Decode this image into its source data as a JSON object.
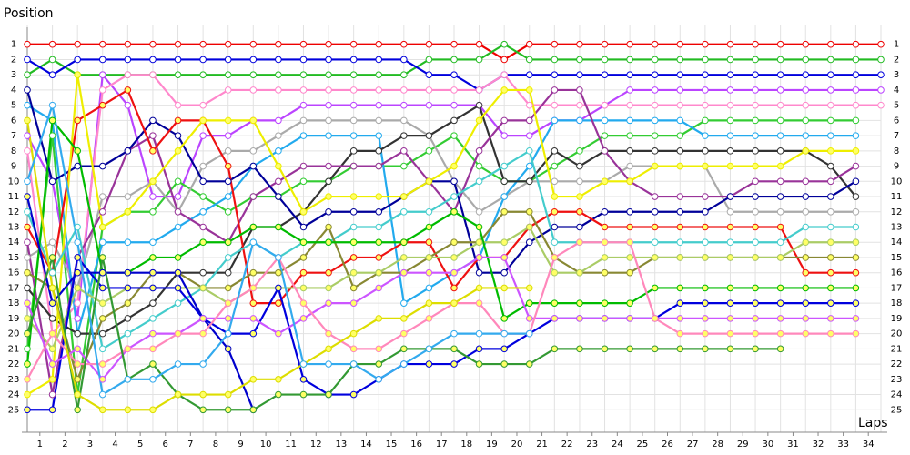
{
  "chart_data": {
    "type": "line",
    "y_axis_label": "Position",
    "x_axis_label": "Laps",
    "x": [
      0,
      1,
      2,
      3,
      4,
      5,
      6,
      7,
      8,
      9,
      10,
      11,
      12,
      13,
      14,
      15,
      16,
      17,
      18,
      19,
      20,
      21,
      22,
      23,
      24,
      25,
      26,
      27,
      28,
      29,
      30,
      31,
      32,
      33,
      34
    ],
    "xlim": [
      0,
      34
    ],
    "xticks": [
      {
        "value": 0.5,
        "label": "1"
      },
      {
        "value": 1.5,
        "label": "2"
      },
      {
        "value": 2.5,
        "label": "3"
      },
      {
        "value": 3.5,
        "label": "4"
      },
      {
        "value": 4.5,
        "label": "5"
      },
      {
        "value": 5.5,
        "label": "6"
      },
      {
        "value": 6.5,
        "label": "7"
      },
      {
        "value": 7.5,
        "label": "8"
      },
      {
        "value": 8.5,
        "label": "9"
      },
      {
        "value": 9.5,
        "label": "10"
      },
      {
        "value": 10.5,
        "label": "11"
      },
      {
        "value": 11.5,
        "label": "12"
      },
      {
        "value": 12.5,
        "label": "13"
      },
      {
        "value": 13.5,
        "label": "14"
      },
      {
        "value": 14.5,
        "label": "15"
      },
      {
        "value": 15.5,
        "label": "16"
      },
      {
        "value": 16.5,
        "label": "17"
      },
      {
        "value": 17.5,
        "label": "18"
      },
      {
        "value": 18.5,
        "label": "19"
      },
      {
        "value": 19.5,
        "label": "20"
      },
      {
        "value": 20.5,
        "label": "21"
      },
      {
        "value": 21.5,
        "label": "22"
      },
      {
        "value": 22.5,
        "label": "23"
      },
      {
        "value": 23.5,
        "label": "24"
      },
      {
        "value": 24.5,
        "label": "25"
      },
      {
        "value": 25.5,
        "label": "26"
      },
      {
        "value": 26.5,
        "label": "27"
      },
      {
        "value": 27.5,
        "label": "28"
      },
      {
        "value": 28.5,
        "label": "29"
      },
      {
        "value": 29.5,
        "label": "30"
      },
      {
        "value": 30.5,
        "label": "31"
      },
      {
        "value": 31.5,
        "label": "32"
      },
      {
        "value": 32.5,
        "label": "33"
      },
      {
        "value": 33.5,
        "label": "34"
      }
    ],
    "ylim": [
      0,
      26
    ],
    "y_reversed": true,
    "yticks": [
      1,
      2,
      3,
      4,
      5,
      6,
      7,
      8,
      9,
      10,
      11,
      12,
      13,
      14,
      15,
      16,
      17,
      18,
      19,
      20,
      21,
      22,
      23,
      24,
      25
    ],
    "grid": true,
    "series": [
      {
        "color": "#ee0000",
        "marker_fill": "#ffffff",
        "values": [
          1,
          1,
          1,
          1,
          1,
          1,
          1,
          1,
          1,
          1,
          1,
          1,
          1,
          1,
          1,
          1,
          1,
          1,
          1,
          2,
          1,
          1,
          1,
          1,
          1,
          1,
          1,
          1,
          1,
          1,
          1,
          1,
          1,
          1,
          1
        ]
      },
      {
        "color": "#22bb22",
        "marker_fill": "#ffffff",
        "values": [
          3,
          2,
          3,
          3,
          3,
          3,
          3,
          3,
          3,
          3,
          3,
          3,
          3,
          3,
          3,
          3,
          2,
          2,
          2,
          1,
          2,
          2,
          2,
          2,
          2,
          2,
          2,
          2,
          2,
          2,
          2,
          2,
          2,
          2,
          2
        ]
      },
      {
        "color": "#0000dd",
        "marker_fill": "#ffffff",
        "values": [
          2,
          3,
          2,
          2,
          2,
          2,
          2,
          2,
          2,
          2,
          2,
          2,
          2,
          2,
          2,
          2,
          3,
          3,
          4,
          3,
          3,
          3,
          3,
          3,
          3,
          3,
          3,
          3,
          3,
          3,
          3,
          3,
          3,
          3,
          3
        ]
      },
      {
        "color": "#bb44ff",
        "marker_fill": "#ffffff",
        "values": [
          7,
          10,
          19,
          3,
          5,
          11,
          11,
          7,
          7,
          6,
          6,
          5,
          5,
          5,
          5,
          5,
          5,
          5,
          5,
          7,
          7,
          6,
          6,
          5,
          4,
          4,
          4,
          4,
          4,
          4,
          4,
          4,
          4,
          4,
          4
        ]
      },
      {
        "color": "#ff88cc",
        "marker_fill": "#ffffff",
        "values": [
          8,
          20,
          18,
          4,
          3,
          3,
          5,
          5,
          4,
          4,
          4,
          4,
          4,
          4,
          4,
          4,
          4,
          4,
          4,
          3,
          5,
          5,
          5,
          5,
          5,
          5,
          5,
          5,
          5,
          5,
          5,
          5,
          5,
          5,
          5
        ]
      },
      {
        "color": "#33cc33",
        "marker_fill": "#ffffff",
        "values": [
          21,
          7,
          24,
          13,
          12,
          12,
          10,
          11,
          12,
          11,
          11,
          10,
          10,
          9,
          9,
          9,
          8,
          7,
          9,
          10,
          10,
          9,
          8,
          7,
          7,
          7,
          7,
          6,
          6,
          6,
          6,
          6,
          6,
          6,
          null
        ]
      },
      {
        "color": "#aaaaaa",
        "marker_fill": "#ffffff",
        "values": [
          15,
          14,
          17,
          11,
          11,
          10,
          12,
          9,
          8,
          8,
          7,
          6,
          6,
          6,
          6,
          6,
          7,
          10,
          12,
          11,
          10,
          10,
          10,
          10,
          9,
          9,
          9,
          9,
          12,
          12,
          12,
          12,
          12,
          12,
          null
        ]
      },
      {
        "color": "#22aaee",
        "marker_fill": "#ffffff",
        "values": [
          5,
          6,
          20,
          14,
          14,
          14,
          13,
          12,
          11,
          9,
          8,
          7,
          7,
          7,
          7,
          18,
          17,
          16,
          15,
          11,
          9,
          6,
          6,
          6,
          6,
          6,
          6,
          7,
          7,
          7,
          7,
          7,
          7,
          7,
          null
        ]
      },
      {
        "color": "#333333",
        "marker_fill": "#ffffff",
        "values": [
          17,
          19,
          20,
          20,
          19,
          18,
          16,
          16,
          16,
          13,
          13,
          12,
          10,
          8,
          8,
          7,
          7,
          6,
          5,
          10,
          10,
          8,
          9,
          8,
          8,
          8,
          8,
          8,
          8,
          8,
          8,
          8,
          9,
          11,
          null
        ]
      },
      {
        "color": "#993399",
        "marker_fill": "#ffffff",
        "values": [
          14,
          24,
          15,
          12,
          8,
          7,
          12,
          13,
          14,
          11,
          10,
          9,
          9,
          9,
          9,
          8,
          10,
          12,
          8,
          6,
          6,
          4,
          4,
          8,
          10,
          11,
          11,
          11,
          11,
          10,
          10,
          10,
          10,
          9,
          null
        ]
      },
      {
        "color": "#000099",
        "marker_fill": "#ffffff",
        "values": [
          4,
          10,
          9,
          9,
          8,
          6,
          7,
          10,
          10,
          9,
          11,
          13,
          12,
          12,
          12,
          11,
          10,
          10,
          16,
          16,
          14,
          13,
          13,
          12,
          12,
          12,
          12,
          12,
          11,
          11,
          11,
          11,
          11,
          10,
          null
        ]
      },
      {
        "color": "#ee1111",
        "marker_fill": "#ffff66",
        "values": [
          13,
          16,
          6,
          5,
          4,
          8,
          6,
          6,
          9,
          18,
          18,
          16,
          16,
          15,
          15,
          14,
          14,
          17,
          15,
          15,
          13,
          12,
          12,
          13,
          13,
          13,
          13,
          13,
          13,
          13,
          13,
          16,
          16,
          16,
          null
        ]
      },
      {
        "color": "#eeee00",
        "marker_fill": "#ffff66",
        "values": [
          24,
          23,
          3,
          13,
          12,
          10,
          8,
          6,
          6,
          6,
          9,
          12,
          11,
          11,
          11,
          11,
          10,
          9,
          6,
          4,
          4,
          11,
          11,
          10,
          10,
          9,
          9,
          9,
          9,
          9,
          9,
          8,
          8,
          8,
          null
        ]
      },
      {
        "color": "#44cccc",
        "marker_fill": "#ffffff",
        "values": [
          12,
          16,
          13,
          21,
          20,
          19,
          18,
          17,
          15,
          14,
          15,
          14,
          14,
          13,
          13,
          12,
          12,
          11,
          10,
          9,
          8,
          14,
          14,
          14,
          14,
          14,
          14,
          14,
          14,
          14,
          14,
          13,
          13,
          13,
          null
        ]
      },
      {
        "color": "#888833",
        "marker_fill": "#ffff66",
        "values": [
          16,
          17,
          23,
          19,
          18,
          16,
          16,
          17,
          17,
          16,
          16,
          15,
          13,
          17,
          16,
          16,
          15,
          14,
          14,
          12,
          12,
          15,
          16,
          16,
          16,
          15,
          15,
          15,
          15,
          15,
          15,
          15,
          15,
          15,
          null
        ]
      },
      {
        "color": "#aacc66",
        "marker_fill": "#ffff66",
        "values": [
          19,
          21,
          17,
          18,
          17,
          17,
          17,
          17,
          18,
          17,
          17,
          17,
          17,
          16,
          16,
          15,
          15,
          15,
          14,
          14,
          13,
          16,
          16,
          15,
          15,
          15,
          15,
          15,
          15,
          15,
          15,
          14,
          14,
          14,
          null
        ]
      },
      {
        "color": "#00bb00",
        "marker_fill": "#ffff66",
        "values": [
          22,
          6,
          8,
          16,
          16,
          15,
          15,
          14,
          14,
          13,
          13,
          14,
          14,
          14,
          14,
          14,
          13,
          12,
          13,
          19,
          18,
          18,
          18,
          18,
          18,
          17,
          17,
          17,
          17,
          17,
          17,
          17,
          17,
          17,
          null
        ]
      },
      {
        "color": "#0000dd",
        "marker_fill": "#ffff66",
        "values": [
          25,
          25,
          15,
          17,
          17,
          17,
          17,
          19,
          20,
          20,
          17,
          23,
          24,
          24,
          23,
          22,
          22,
          22,
          21,
          21,
          20,
          19,
          19,
          19,
          19,
          19,
          18,
          18,
          18,
          18,
          18,
          18,
          18,
          18,
          null
        ]
      },
      {
        "color": "#0000cc",
        "marker_fill": "#ffff66",
        "values": [
          11,
          18,
          16,
          16,
          16,
          16,
          16,
          19,
          21,
          25,
          null,
          null,
          null,
          null,
          null,
          null,
          null,
          null,
          null,
          null,
          null,
          null,
          null,
          null,
          null,
          null,
          null,
          null,
          null,
          null,
          null,
          null,
          null,
          null,
          null
        ]
      },
      {
        "color": "#cc55ff",
        "marker_fill": "#ffff66",
        "values": [
          18,
          22,
          21,
          23,
          21,
          20,
          20,
          19,
          19,
          19,
          20,
          19,
          18,
          18,
          17,
          16,
          16,
          16,
          15,
          15,
          19,
          19,
          19,
          19,
          19,
          19,
          19,
          19,
          19,
          19,
          19,
          19,
          19,
          19,
          null
        ]
      },
      {
        "color": "#ff88bb",
        "marker_fill": "#ffff66",
        "values": [
          23,
          20,
          22,
          22,
          21,
          21,
          20,
          20,
          18,
          17,
          15,
          18,
          20,
          21,
          21,
          20,
          19,
          18,
          18,
          20,
          20,
          15,
          14,
          14,
          14,
          19,
          20,
          20,
          20,
          20,
          20,
          20,
          20,
          20,
          null
        ]
      },
      {
        "color": "#339933",
        "marker_fill": "#ffff66",
        "values": [
          20,
          15,
          25,
          15,
          23,
          22,
          24,
          25,
          25,
          25,
          24,
          24,
          24,
          22,
          22,
          21,
          21,
          21,
          22,
          22,
          22,
          21,
          21,
          21,
          21,
          21,
          21,
          21,
          21,
          21,
          21,
          null,
          null,
          null,
          null
        ]
      },
      {
        "color": "#dddd00",
        "marker_fill": "#ffff66",
        "values": [
          6,
          17,
          24,
          25,
          25,
          25,
          24,
          24,
          24,
          23,
          23,
          22,
          21,
          20,
          19,
          19,
          18,
          18,
          17,
          17,
          17,
          null,
          null,
          null,
          null,
          null,
          null,
          null,
          null,
          null,
          null,
          null,
          null,
          null,
          null
        ]
      },
      {
        "color": "#33aaee",
        "marker_fill": "#ffffff",
        "values": [
          10,
          5,
          14,
          24,
          23,
          23,
          22,
          22,
          20,
          14,
          15,
          22,
          22,
          22,
          23,
          22,
          21,
          20,
          20,
          20,
          20,
          null,
          null,
          null,
          null,
          null,
          null,
          null,
          null,
          null,
          null,
          null,
          null,
          null,
          null
        ]
      }
    ]
  }
}
